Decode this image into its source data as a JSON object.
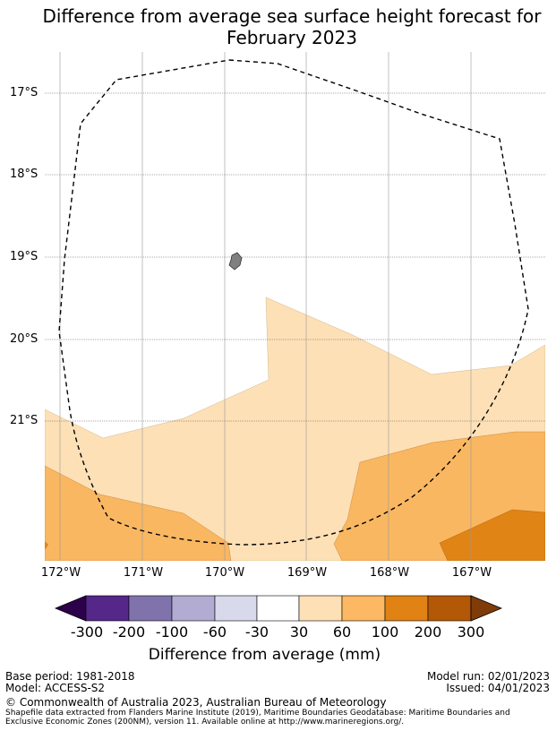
{
  "title": {
    "line1": "Difference from average sea surface height forecast for",
    "line2": "February 2023"
  },
  "map": {
    "lat_labels": [
      "17°S",
      "18°S",
      "19°S",
      "20°S",
      "21°S"
    ],
    "lon_labels": [
      "172°W",
      "171°W",
      "170°W",
      "169°W",
      "168°W",
      "167°W"
    ],
    "colors": {
      "30-60": "#fde0b6",
      "60-100": "#f9b762",
      "100-200": "#e08416",
      "land": "#808080",
      "eez_boundary": "#000000"
    }
  },
  "colorbar": {
    "labels": [
      "-300",
      "-200",
      "-100",
      "-60",
      "-30",
      "30",
      "60",
      "100",
      "200",
      "300"
    ],
    "colors": [
      "#2d004b",
      "#542788",
      "#8073ac",
      "#b2abd2",
      "#d8daeb",
      "#ffffff",
      "#fee0b6",
      "#fdb863",
      "#e08214",
      "#b35806",
      "#7f3b08"
    ],
    "title": "Difference from average (mm)"
  },
  "footer": {
    "base_period": "Base period: 1981-2018",
    "model": "Model: ACCESS-S2",
    "model_run": "Model run: 02/01/2023",
    "issued": "Issued: 04/01/2023",
    "copyright": "© Commonwealth of Australia 2023, Australian Bureau of Meteorology",
    "shapefile_line1": "Shapefile data extracted from Flanders Marine Institute (2019), Maritime Boundaries Geodatabase: Maritime Boundaries and",
    "shapefile_line2": "Exclusive Economic Zones (200NM), version 11. Available online at http://www.marineregions.org/."
  }
}
